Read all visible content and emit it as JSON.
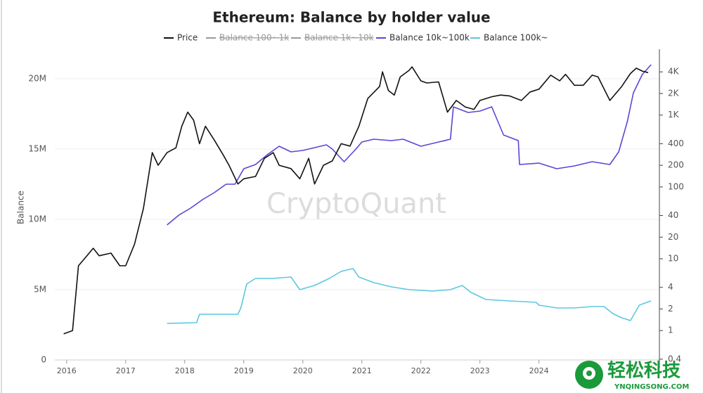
{
  "chart_data": {
    "type": "line",
    "title": "Ethereum: Balance by holder value",
    "y_label": "Balance",
    "watermark": "CryptoQuant",
    "grid": true,
    "legend": "top",
    "xlim": [
      2015.8,
      2026.04
    ],
    "xticks": [
      2016,
      2017,
      2018,
      2019,
      2020,
      2021,
      2022,
      2023,
      2024
    ],
    "ylim": [
      0,
      21600000
    ],
    "yticks": [
      {
        "value": 0,
        "label": "0"
      },
      {
        "value": 5000000,
        "label": "5M"
      },
      {
        "value": 10000000,
        "label": "10M"
      },
      {
        "value": 15000000,
        "label": "15M"
      },
      {
        "value": 20000000,
        "label": "20M"
      }
    ],
    "y2_log": true,
    "y2lim": [
      0.39,
      6600
    ],
    "y2ticks": [
      0.4,
      1,
      2,
      4,
      10,
      20,
      40,
      100,
      200,
      400,
      {
        "value": 1000,
        "label": "1K"
      },
      {
        "value": 2000,
        "label": "2K"
      },
      {
        "value": 4000,
        "label": "4K"
      }
    ],
    "series": [
      {
        "name": "Price",
        "color": "#111111",
        "axis": "y2",
        "x": [
          2015.95,
          2016.1,
          2016.2,
          2016.3,
          2016.45,
          2016.55,
          2016.75,
          2016.9,
          2017.0,
          2017.15,
          2017.3,
          2017.45,
          2017.55,
          2017.7,
          2017.85,
          2017.95,
          2018.05,
          2018.15,
          2018.25,
          2018.35,
          2018.5,
          2018.65,
          2018.75,
          2018.9,
          2019.0,
          2019.2,
          2019.35,
          2019.5,
          2019.6,
          2019.8,
          2019.95,
          2020.1,
          2020.2,
          2020.35,
          2020.5,
          2020.65,
          2020.8,
          2020.95,
          2021.1,
          2021.3,
          2021.35,
          2021.45,
          2021.55,
          2021.65,
          2021.8,
          2021.85,
          2022.0,
          2022.1,
          2022.3,
          2022.45,
          2022.6,
          2022.75,
          2022.9,
          2023.0,
          2023.2,
          2023.35,
          2023.5,
          2023.7,
          2023.85,
          2024.0,
          2024.2,
          2024.35,
          2024.45,
          2024.6,
          2024.75,
          2024.9,
          2025.0,
          2025.2,
          2025.4,
          2025.55,
          2025.65,
          2025.75,
          2025.85
        ],
        "values": [
          0.9,
          1.0,
          8,
          10,
          14,
          11,
          12,
          8,
          8,
          16,
          50,
          300,
          200,
          300,
          350,
          700,
          1100,
          850,
          400,
          700,
          450,
          280,
          200,
          110,
          130,
          140,
          250,
          300,
          200,
          180,
          130,
          250,
          110,
          200,
          230,
          400,
          370,
          700,
          1700,
          2500,
          4000,
          2200,
          1900,
          3400,
          4200,
          4700,
          3000,
          2800,
          2900,
          1100,
          1600,
          1300,
          1200,
          1600,
          1800,
          1900,
          1850,
          1600,
          2100,
          2300,
          3600,
          3000,
          3700,
          2600,
          2600,
          3600,
          3400,
          1600,
          2500,
          3800,
          4500,
          4100,
          3900
        ]
      },
      {
        "name": "Balance 100~1k",
        "color": "#999999",
        "hidden": true
      },
      {
        "name": "Balance 1k~10k",
        "color": "#999999",
        "hidden": true
      },
      {
        "name": "Balance 10k~100k",
        "color": "#5b45d6",
        "axis": "y",
        "x": [
          2017.7,
          2017.9,
          2018.1,
          2018.3,
          2018.5,
          2018.7,
          2018.85,
          2019.0,
          2019.2,
          2019.4,
          2019.6,
          2019.8,
          2020.0,
          2020.2,
          2020.4,
          2020.5,
          2020.7,
          2020.9,
          2021.0,
          2021.2,
          2021.5,
          2021.7,
          2022.0,
          2022.3,
          2022.5,
          2022.55,
          2022.8,
          2023.0,
          2023.2,
          2023.4,
          2023.65,
          2023.67,
          2024.0,
          2024.3,
          2024.6,
          2024.9,
          2025.2,
          2025.35,
          2025.5,
          2025.6,
          2025.75,
          2025.9
        ],
        "values": [
          9600000,
          10300000,
          10800000,
          11400000,
          11900000,
          12500000,
          12500000,
          13600000,
          13900000,
          14600000,
          15200000,
          14800000,
          14900000,
          15100000,
          15300000,
          15000000,
          14100000,
          15000000,
          15500000,
          15700000,
          15600000,
          15700000,
          15200000,
          15500000,
          15700000,
          18000000,
          17600000,
          17700000,
          18000000,
          16000000,
          15600000,
          13900000,
          14000000,
          13600000,
          13800000,
          14100000,
          13900000,
          14800000,
          17000000,
          19000000,
          20300000,
          21000000
        ]
      },
      {
        "name": "Balance 100k~",
        "color": "#5cc8e0",
        "axis": "y",
        "x": [
          2017.7,
          2018.2,
          2018.25,
          2018.9,
          2018.95,
          2019.05,
          2019.2,
          2019.5,
          2019.8,
          2019.95,
          2020.2,
          2020.45,
          2020.65,
          2020.85,
          2020.95,
          2021.2,
          2021.5,
          2021.8,
          2022.2,
          2022.5,
          2022.7,
          2022.85,
          2023.1,
          2023.5,
          2023.95,
          2024.0,
          2024.3,
          2024.6,
          2024.9,
          2025.1,
          2025.25,
          2025.4,
          2025.55,
          2025.7,
          2025.9
        ],
        "values": [
          2600000,
          2650000,
          3250000,
          3250000,
          3700000,
          5400000,
          5800000,
          5800000,
          5900000,
          5000000,
          5300000,
          5800000,
          6300000,
          6500000,
          5900000,
          5500000,
          5200000,
          5000000,
          4900000,
          5000000,
          5300000,
          4800000,
          4300000,
          4200000,
          4100000,
          3900000,
          3700000,
          3700000,
          3800000,
          3800000,
          3300000,
          3000000,
          2800000,
          3900000,
          4200000
        ]
      }
    ]
  },
  "logo": {
    "title": "轻松科技",
    "subtitle": "YNQINGSONG.COM"
  }
}
